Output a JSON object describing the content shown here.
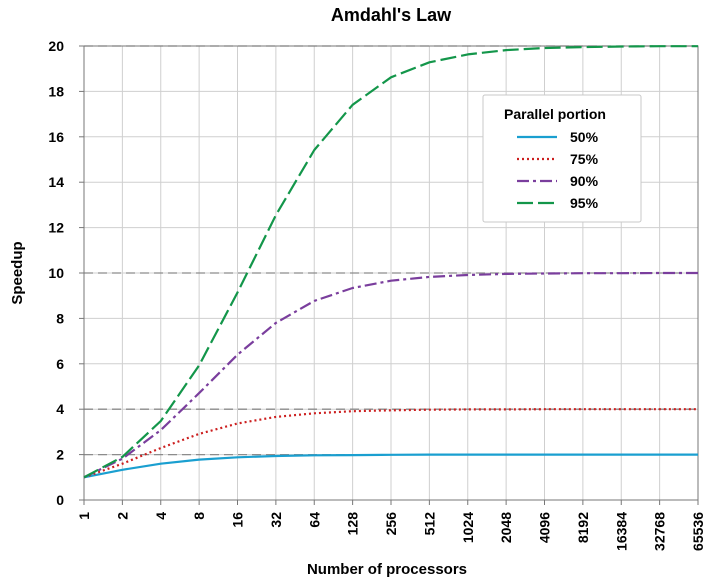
{
  "chart_data": {
    "type": "line",
    "title": "Amdahl's Law",
    "xlabel": "Number of processors",
    "ylabel": "Speedup",
    "x_scale": "log2",
    "x": [
      1,
      2,
      4,
      8,
      16,
      32,
      64,
      128,
      256,
      512,
      1024,
      2048,
      4096,
      8192,
      16384,
      32768,
      65536
    ],
    "x_tick_labels": [
      "1",
      "2",
      "4",
      "8",
      "16",
      "32",
      "64",
      "128",
      "256",
      "512",
      "1024",
      "2048",
      "4096",
      "8192",
      "16384",
      "32768",
      "65536"
    ],
    "y_ticks": [
      0,
      2,
      4,
      6,
      8,
      10,
      12,
      14,
      16,
      18,
      20
    ],
    "ylim": [
      0,
      20
    ],
    "grid": true,
    "dashed_reference_lines": [
      2,
      4,
      10,
      20
    ],
    "legend": {
      "title": "Parallel portion",
      "position": "top-right"
    },
    "series": [
      {
        "name": "50%",
        "color": "#1a9fd0",
        "dash": "solid",
        "values": [
          1.0,
          1.33,
          1.6,
          1.78,
          1.88,
          1.94,
          1.97,
          1.98,
          1.99,
          2.0,
          2.0,
          2.0,
          2.0,
          2.0,
          2.0,
          2.0,
          2.0
        ]
      },
      {
        "name": "75%",
        "color": "#cc1f1f",
        "dash": "dotted",
        "values": [
          1.0,
          1.6,
          2.29,
          2.91,
          3.37,
          3.66,
          3.82,
          3.91,
          3.95,
          3.98,
          3.99,
          3.99,
          4.0,
          4.0,
          4.0,
          4.0,
          4.0
        ]
      },
      {
        "name": "90%",
        "color": "#7a3e9d",
        "dash": "dashdot",
        "values": [
          1.0,
          1.82,
          3.08,
          4.71,
          6.4,
          7.8,
          8.77,
          9.34,
          9.66,
          9.83,
          9.91,
          9.96,
          9.98,
          9.99,
          9.99,
          10.0,
          10.0
        ]
      },
      {
        "name": "95%",
        "color": "#13964a",
        "dash": "longdash",
        "values": [
          1.0,
          1.9,
          3.48,
          5.93,
          9.14,
          12.55,
          15.42,
          17.41,
          18.62,
          19.28,
          19.63,
          19.82,
          19.91,
          19.95,
          19.98,
          19.99,
          19.99
        ]
      }
    ]
  }
}
